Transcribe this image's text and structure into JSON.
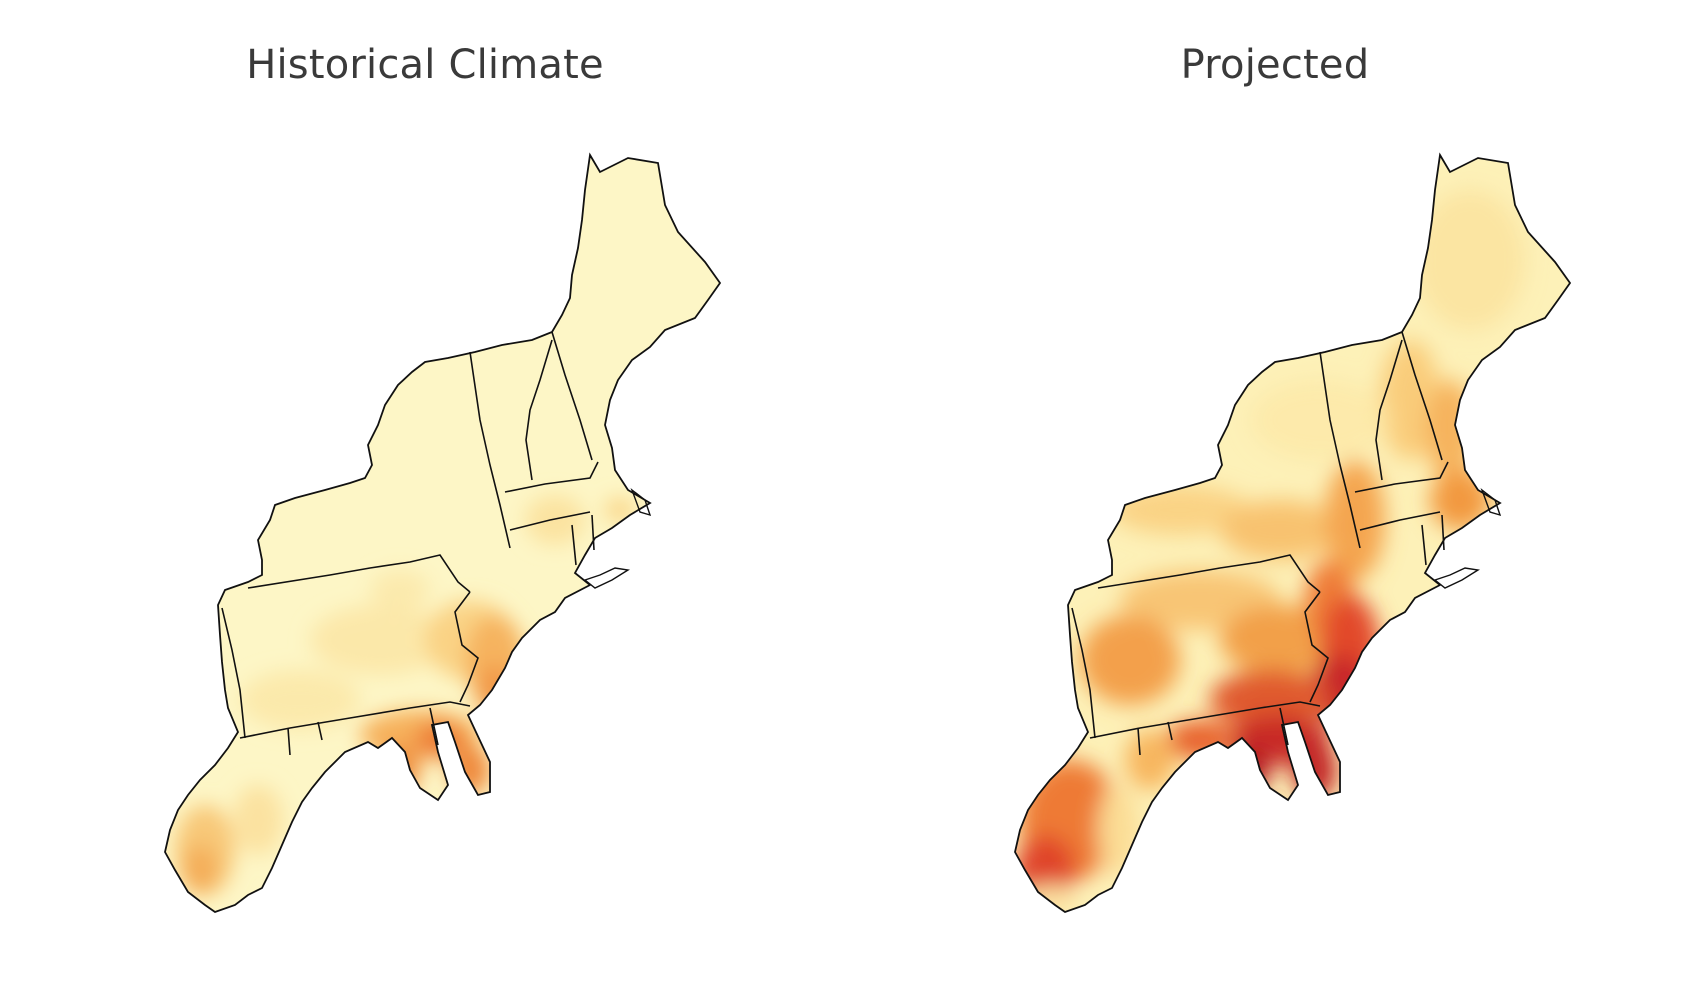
{
  "panels": [
    {
      "title": "Historical Climate",
      "palette": {
        "base": "#fdf6c6",
        "light": "#fce9a6",
        "mid": "#f9c874",
        "warm": "#f5a04e",
        "hot": "#ee7a36",
        "deep": "#e04a2b",
        "darkest": "#b61e24"
      },
      "intensity": "low"
    },
    {
      "title": "Projected",
      "palette": {
        "base": "#fdf3bd",
        "light": "#fbe196",
        "mid": "#f7bd68",
        "warm": "#f28e42",
        "hot": "#e8622f",
        "deep": "#d63226",
        "darkest": "#ad1a22"
      },
      "intensity": "high"
    }
  ]
}
